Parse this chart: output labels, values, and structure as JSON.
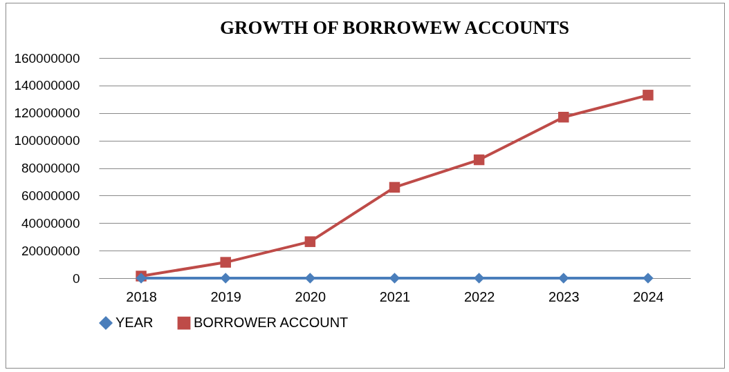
{
  "chart_data": {
    "type": "line",
    "title": "GROWTH OF BORROWEW ACCOUNTS",
    "categories": [
      "2018",
      "2019",
      "2020",
      "2021",
      "2022",
      "2023",
      "2024"
    ],
    "series": [
      {
        "name": "YEAR",
        "color": "#4a7ebb",
        "marker": "diamond",
        "values": [
          2018,
          2019,
          2020,
          2021,
          2022,
          2023,
          2024
        ]
      },
      {
        "name": "BORROWER ACCOUNT",
        "color": "#be4b48",
        "marker": "square",
        "values": [
          1500000,
          11500000,
          26500000,
          66000000,
          86000000,
          117000000,
          133000000
        ]
      }
    ],
    "ylim": [
      0,
      160000000
    ],
    "yticks": [
      0,
      20000000,
      40000000,
      60000000,
      80000000,
      100000000,
      120000000,
      140000000,
      160000000
    ],
    "grid": "y",
    "legend": "bottom",
    "line_style": "solid"
  }
}
